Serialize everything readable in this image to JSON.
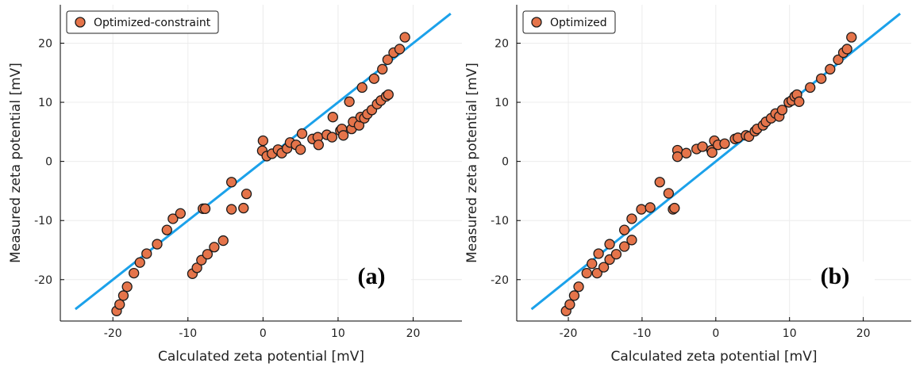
{
  "colors": {
    "line": "#1ba1ea",
    "marker_fill": "#e5744a",
    "marker_edge": "#1a1a1a",
    "grid": "#ececec",
    "axis": "#000000"
  },
  "chart_data": [
    {
      "type": "scatter",
      "panel_label": "(a)",
      "xlabel": "Calculated zeta potential [mV]",
      "ylabel": "Measured zeta potential [mV]",
      "xlim": [
        -27,
        26.5
      ],
      "ylim": [
        -27,
        26.5
      ],
      "xticks": [
        -20,
        -10,
        0,
        10,
        20
      ],
      "yticks": [
        -20,
        -10,
        0,
        10,
        20
      ],
      "xtick_labels": [
        "-20",
        "-10",
        "0",
        "10",
        "20"
      ],
      "ytick_labels": [
        "-20",
        "-10",
        "0",
        "10",
        "20"
      ],
      "grid": true,
      "legend_position": "top-left",
      "series": [
        {
          "name": "Optimized-constraint",
          "kind": "scatter",
          "points": [
            [
              -19.5,
              -25.3
            ],
            [
              -19.1,
              -24.2
            ],
            [
              -18.6,
              -22.7
            ],
            [
              -18.1,
              -21.2
            ],
            [
              -17.2,
              -18.9
            ],
            [
              -16.4,
              -17.1
            ],
            [
              -15.5,
              -15.6
            ],
            [
              -14.1,
              -14.0
            ],
            [
              -12.8,
              -11.6
            ],
            [
              -12.0,
              -9.7
            ],
            [
              -11.0,
              -8.8
            ],
            [
              -8.0,
              -8.0
            ],
            [
              -7.7,
              -8.0
            ],
            [
              -4.2,
              -3.5
            ],
            [
              -4.2,
              -8.1
            ],
            [
              -2.6,
              -7.9
            ],
            [
              -2.2,
              -5.5
            ],
            [
              -9.4,
              -19.0
            ],
            [
              -8.8,
              -18.0
            ],
            [
              -8.2,
              -16.7
            ],
            [
              -7.4,
              -15.7
            ],
            [
              -6.5,
              -14.5
            ],
            [
              -5.3,
              -13.4
            ],
            [
              0.0,
              3.5
            ],
            [
              -0.1,
              1.8
            ],
            [
              0.5,
              0.9
            ],
            [
              1.2,
              1.3
            ],
            [
              2.0,
              2.0
            ],
            [
              2.5,
              1.4
            ],
            [
              3.2,
              2.2
            ],
            [
              3.6,
              3.2
            ],
            [
              4.4,
              2.8
            ],
            [
              5.0,
              2.0
            ],
            [
              5.2,
              4.7
            ],
            [
              6.6,
              3.8
            ],
            [
              7.3,
              4.1
            ],
            [
              7.4,
              2.8
            ],
            [
              8.5,
              4.5
            ],
            [
              9.2,
              4.1
            ],
            [
              9.3,
              7.5
            ],
            [
              10.3,
              5.2
            ],
            [
              10.5,
              5.5
            ],
            [
              10.7,
              4.4
            ],
            [
              11.5,
              10.1
            ],
            [
              11.8,
              5.5
            ],
            [
              12.0,
              6.7
            ],
            [
              12.8,
              6.1
            ],
            [
              13.0,
              7.5
            ],
            [
              13.2,
              12.5
            ],
            [
              13.5,
              7.3
            ],
            [
              13.9,
              8.0
            ],
            [
              14.5,
              8.7
            ],
            [
              14.8,
              14.0
            ],
            [
              15.2,
              9.7
            ],
            [
              15.7,
              10.3
            ],
            [
              15.9,
              15.6
            ],
            [
              16.4,
              11.0
            ],
            [
              16.7,
              11.3
            ],
            [
              16.6,
              17.2
            ],
            [
              17.4,
              18.4
            ],
            [
              18.2,
              19.0
            ],
            [
              18.9,
              21.0
            ]
          ]
        },
        {
          "kind": "line",
          "points": [
            [
              -25,
              -25
            ],
            [
              25,
              25
            ]
          ]
        }
      ]
    },
    {
      "type": "scatter",
      "panel_label": "(b)",
      "xlabel": "Calculated zeta potential [mV]",
      "ylabel": "Measured zeta potential [mV]",
      "xlim": [
        -27,
        26.5
      ],
      "ylim": [
        -27,
        26.5
      ],
      "xticks": [
        -20,
        -10,
        0,
        10,
        20
      ],
      "yticks": [
        -20,
        -10,
        0,
        10,
        20
      ],
      "xtick_labels": [
        "-20",
        "-10",
        "0",
        "10",
        "20"
      ],
      "ytick_labels": [
        "-20",
        "-10",
        "0",
        "10",
        "20"
      ],
      "grid": true,
      "legend_position": "top-left",
      "series": [
        {
          "name": "Optimized",
          "kind": "scatter",
          "points": [
            [
              -20.3,
              -25.3
            ],
            [
              -19.8,
              -24.2
            ],
            [
              -19.2,
              -22.7
            ],
            [
              -18.6,
              -21.2
            ],
            [
              -17.5,
              -18.9
            ],
            [
              -16.8,
              -17.3
            ],
            [
              -15.9,
              -15.6
            ],
            [
              -14.4,
              -14.0
            ],
            [
              -12.4,
              -11.6
            ],
            [
              -11.4,
              -9.7
            ],
            [
              -10.1,
              -8.1
            ],
            [
              -8.9,
              -7.8
            ],
            [
              -7.6,
              -3.5
            ],
            [
              -6.4,
              -5.4
            ],
            [
              -5.8,
              -8.1
            ],
            [
              -5.6,
              -7.9
            ],
            [
              -16.1,
              -18.9
            ],
            [
              -15.2,
              -17.9
            ],
            [
              -14.4,
              -16.6
            ],
            [
              -13.5,
              -15.7
            ],
            [
              -12.4,
              -14.4
            ],
            [
              -11.4,
              -13.3
            ],
            [
              -5.2,
              1.9
            ],
            [
              -5.2,
              0.8
            ],
            [
              -4.0,
              1.4
            ],
            [
              -2.6,
              2.1
            ],
            [
              -1.8,
              2.5
            ],
            [
              -0.6,
              1.9
            ],
            [
              -0.5,
              1.5
            ],
            [
              -0.2,
              3.5
            ],
            [
              0.3,
              2.8
            ],
            [
              1.2,
              3.0
            ],
            [
              2.6,
              3.8
            ],
            [
              3.0,
              4.0
            ],
            [
              4.1,
              4.4
            ],
            [
              4.5,
              4.2
            ],
            [
              5.3,
              5.1
            ],
            [
              5.6,
              5.5
            ],
            [
              6.4,
              6.1
            ],
            [
              6.8,
              6.7
            ],
            [
              7.5,
              7.3
            ],
            [
              8.1,
              8.1
            ],
            [
              8.6,
              7.6
            ],
            [
              9.0,
              8.7
            ],
            [
              9.9,
              10.0
            ],
            [
              10.3,
              10.3
            ],
            [
              10.7,
              11.0
            ],
            [
              11.0,
              11.3
            ],
            [
              11.3,
              10.1
            ],
            [
              12.8,
              12.5
            ],
            [
              14.3,
              14.0
            ],
            [
              15.5,
              15.6
            ],
            [
              16.6,
              17.2
            ],
            [
              17.3,
              18.4
            ],
            [
              17.8,
              19.0
            ],
            [
              18.4,
              21.0
            ]
          ]
        },
        {
          "kind": "line",
          "points": [
            [
              -25,
              -25
            ],
            [
              25,
              25
            ]
          ]
        }
      ]
    }
  ]
}
